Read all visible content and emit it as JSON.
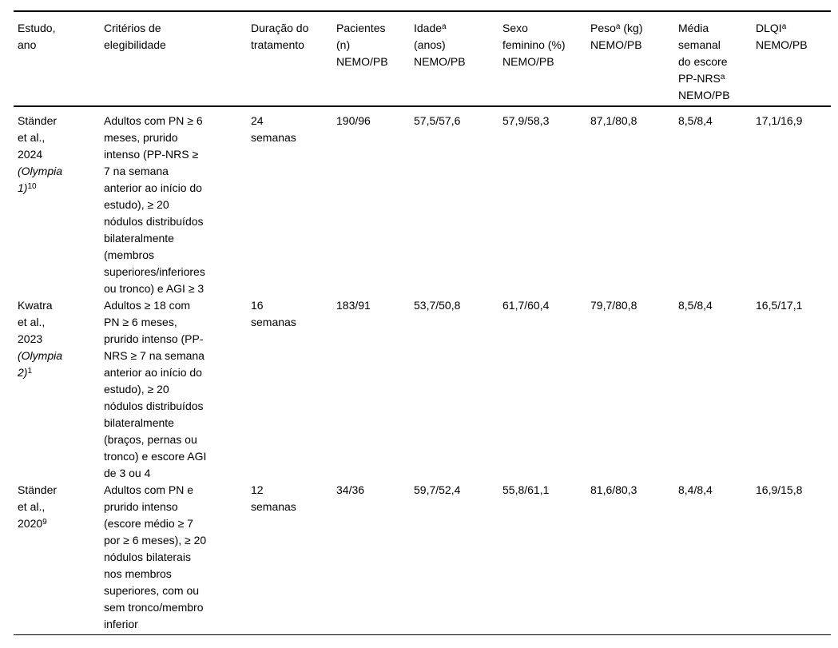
{
  "table": {
    "headers": [
      {
        "id": "estudo-ano",
        "segments": [
          {
            "t": "Estudo,\nano"
          }
        ]
      },
      {
        "id": "criterios",
        "segments": [
          {
            "t": "Critérios de\nelegibilidade"
          }
        ]
      },
      {
        "id": "duracao",
        "segments": [
          {
            "t": "Duração do\ntratamento"
          }
        ]
      },
      {
        "id": "pacientes",
        "segments": [
          {
            "t": "Pacientes\n(n)\nNEMO/PB"
          }
        ]
      },
      {
        "id": "idade",
        "segments": [
          {
            "t": "Idade"
          },
          {
            "t": "a",
            "sup": true
          },
          {
            "t": "\n(anos)\nNEMO/PB"
          }
        ]
      },
      {
        "id": "sexo-feminino",
        "segments": [
          {
            "t": "Sexo\nfeminino (%)\nNEMO/PB"
          }
        ]
      },
      {
        "id": "peso",
        "segments": [
          {
            "t": "Peso"
          },
          {
            "t": "a",
            "sup": true
          },
          {
            "t": " (kg)\nNEMO/PB"
          }
        ]
      },
      {
        "id": "pp-nrs",
        "segments": [
          {
            "t": "Média\nsemanal\ndo escore\nPP-NRS"
          },
          {
            "t": "a",
            "sup": true
          },
          {
            "t": "\nNEMO/PB"
          }
        ]
      },
      {
        "id": "dlqi",
        "segments": [
          {
            "t": "DLQI"
          },
          {
            "t": "a",
            "sup": true
          },
          {
            "t": "\nNEMO/PB"
          }
        ]
      }
    ],
    "rows": [
      {
        "study": [
          {
            "t": "Ständer\net al.,\n2024\n"
          },
          {
            "t": "(Olympia\n1)",
            "i": true
          },
          {
            "t": "10",
            "sup": true
          }
        ],
        "criteria": [
          {
            "t": "Adultos com PN ≥ 6\nmeses, prurido\nintenso (PP-NRS ≥\n7 na semana\nanterior ao início do\nestudo), ≥ 20\nnódulos distribuídos\nbilateralmente\n(membros\nsuperiores/inferiores\nou tronco) e AGI ≥ 3"
          }
        ],
        "duration": [
          {
            "t": "24\nsemanas"
          }
        ],
        "patients": [
          {
            "t": "190/96"
          }
        ],
        "age": [
          {
            "t": "57,5/57,6"
          }
        ],
        "female": [
          {
            "t": "57,9/58,3"
          }
        ],
        "weight": [
          {
            "t": "87,1/80,8"
          }
        ],
        "ppnrs": [
          {
            "t": "8,5/8,4"
          }
        ],
        "dlqi": [
          {
            "t": "17,1/16,9"
          }
        ]
      },
      {
        "study": [
          {
            "t": "Kwatra\net al.,\n2023\n"
          },
          {
            "t": "(Olympia\n2)",
            "i": true
          },
          {
            "t": "1",
            "sup": true
          }
        ],
        "criteria": [
          {
            "t": "Adultos ≥ 18 com\nPN ≥ 6 meses,\nprurido intenso (PP-\nNRS ≥ 7 na semana\nanterior ao início do\nestudo), ≥ 20\nnódulos distribuídos\nbilateralmente\n(braços, pernas ou\ntronco) e escore AGI\nde 3 ou 4"
          }
        ],
        "duration": [
          {
            "t": "16\nsemanas"
          }
        ],
        "patients": [
          {
            "t": "183/91"
          }
        ],
        "age": [
          {
            "t": "53,7/50,8"
          }
        ],
        "female": [
          {
            "t": "61,7/60,4"
          }
        ],
        "weight": [
          {
            "t": "79,7/80,8"
          }
        ],
        "ppnrs": [
          {
            "t": "8,5/8,4"
          }
        ],
        "dlqi": [
          {
            "t": "16,5/17,1"
          }
        ]
      },
      {
        "study": [
          {
            "t": "Ständer\net al.,\n2020"
          },
          {
            "t": "9",
            "sup": true
          }
        ],
        "criteria": [
          {
            "t": "Adultos com PN e\nprurido intenso\n(escore médio ≥ 7\npor ≥ 6 meses), ≥ 20\nnódulos bilaterais\nnos membros\nsuperiores, com ou\nsem tronco/membro\ninferior"
          }
        ],
        "duration": [
          {
            "t": "12\nsemanas"
          }
        ],
        "patients": [
          {
            "t": "34/36"
          }
        ],
        "age": [
          {
            "t": "59,7/52,4"
          }
        ],
        "female": [
          {
            "t": "55,8/61,1"
          }
        ],
        "weight": [
          {
            "t": "81,6/80,3"
          }
        ],
        "ppnrs": [
          {
            "t": "8,4/8,4"
          }
        ],
        "dlqi": [
          {
            "t": "16,9/15,8"
          }
        ]
      }
    ]
  }
}
